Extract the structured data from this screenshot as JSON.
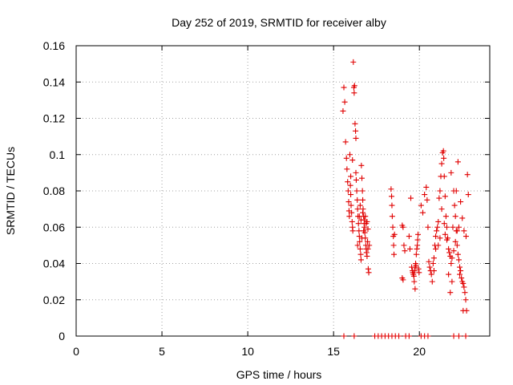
{
  "chart_data": {
    "type": "scatter",
    "title": "Day 252 of 2019, SRMTID for receiver alby",
    "xlabel": "GPS time / hours",
    "ylabel": "SRMTID / TECUs",
    "xlim": [
      0,
      24.1
    ],
    "ylim": [
      0,
      0.16
    ],
    "x_ticks": [
      0,
      5,
      10,
      15,
      20
    ],
    "x_tick_labels": [
      "0",
      "5",
      "10",
      "15",
      "20"
    ],
    "y_ticks": [
      0,
      0.02,
      0.04,
      0.06,
      0.08,
      0.1,
      0.12,
      0.14,
      0.16
    ],
    "y_tick_labels": [
      "0",
      "0.02",
      "0.04",
      "0.06",
      "0.08",
      "0.1",
      "0.12",
      "0.14",
      "0.16"
    ],
    "grid": true,
    "marker": "plus",
    "color": "#e00000",
    "series": [
      {
        "points": [
          [
            15.55,
            0.124
          ],
          [
            15.6,
            0.137
          ],
          [
            15.65,
            0.129
          ],
          [
            15.7,
            0.107
          ],
          [
            15.75,
            0.098
          ],
          [
            15.78,
            0.092
          ],
          [
            15.82,
            0.085
          ],
          [
            15.85,
            0.08
          ],
          [
            15.88,
            0.074
          ],
          [
            15.9,
            0.069
          ],
          [
            15.92,
            0.066
          ],
          [
            15.95,
            0.1
          ],
          [
            15.98,
            0.083
          ],
          [
            16.0,
            0.078
          ],
          [
            16.02,
            0.072
          ],
          [
            16.05,
            0.068
          ],
          [
            16.08,
            0.063
          ],
          [
            16.1,
            0.06
          ],
          [
            16.12,
            0.058
          ],
          [
            16.15,
            0.151
          ],
          [
            16.18,
            0.137
          ],
          [
            16.2,
            0.134
          ],
          [
            16.22,
            0.138
          ],
          [
            16.25,
            0.117
          ],
          [
            16.28,
            0.113
          ],
          [
            16.3,
            0.09
          ],
          [
            16.32,
            0.086
          ],
          [
            16.35,
            0.08
          ],
          [
            16.38,
            0.075
          ],
          [
            16.4,
            0.07
          ],
          [
            16.42,
            0.066
          ],
          [
            16.45,
            0.062
          ],
          [
            16.48,
            0.058
          ],
          [
            16.5,
            0.055
          ],
          [
            16.52,
            0.052
          ],
          [
            16.55,
            0.048
          ],
          [
            16.58,
            0.045
          ],
          [
            16.6,
            0.042
          ],
          [
            16.62,
            0.094
          ],
          [
            16.65,
            0.087
          ],
          [
            16.68,
            0.08
          ],
          [
            16.7,
            0.075
          ],
          [
            16.72,
            0.07
          ],
          [
            16.75,
            0.066
          ],
          [
            16.78,
            0.062
          ],
          [
            16.8,
            0.06
          ],
          [
            16.82,
            0.057
          ],
          [
            16.85,
            0.054
          ],
          [
            16.88,
            0.05
          ],
          [
            16.9,
            0.048
          ],
          [
            16.92,
            0.046
          ],
          [
            16.95,
            0.044
          ],
          [
            16.98,
            0.052
          ],
          [
            17.0,
            0.048
          ],
          [
            17.02,
            0.037
          ],
          [
            17.05,
            0.035
          ],
          [
            17.08,
            0.05
          ],
          [
            16.3,
            0.109
          ],
          [
            16.1,
            0.097
          ],
          [
            16.0,
            0.088
          ],
          [
            16.5,
            0.066
          ],
          [
            16.6,
            0.064
          ],
          [
            16.7,
            0.068
          ],
          [
            16.8,
            0.064
          ],
          [
            16.9,
            0.062
          ],
          [
            17.0,
            0.059
          ],
          [
            16.4,
            0.05
          ],
          [
            16.55,
            0.072
          ],
          [
            16.65,
            0.054
          ],
          [
            16.75,
            0.058
          ],
          [
            16.85,
            0.066
          ],
          [
            16.95,
            0.063
          ],
          [
            18.35,
            0.081
          ],
          [
            18.38,
            0.077
          ],
          [
            18.4,
            0.072
          ],
          [
            18.42,
            0.066
          ],
          [
            18.45,
            0.06
          ],
          [
            18.48,
            0.055
          ],
          [
            18.5,
            0.05
          ],
          [
            18.52,
            0.045
          ],
          [
            18.55,
            0.056
          ],
          [
            19.0,
            0.061
          ],
          [
            19.05,
            0.06
          ],
          [
            19.1,
            0.05
          ],
          [
            19.15,
            0.047
          ],
          [
            19.0,
            0.032
          ],
          [
            19.05,
            0.031
          ],
          [
            19.4,
            0.055
          ],
          [
            19.45,
            0.048
          ],
          [
            19.5,
            0.076
          ],
          [
            19.55,
            0.038
          ],
          [
            19.6,
            0.036
          ],
          [
            19.62,
            0.035
          ],
          [
            19.65,
            0.034
          ],
          [
            19.68,
            0.033
          ],
          [
            19.7,
            0.03
          ],
          [
            19.72,
            0.036
          ],
          [
            19.75,
            0.038
          ],
          [
            19.78,
            0.04
          ],
          [
            19.8,
            0.039
          ],
          [
            19.82,
            0.045
          ],
          [
            19.85,
            0.048
          ],
          [
            19.88,
            0.05
          ],
          [
            19.9,
            0.053
          ],
          [
            19.92,
            0.056
          ],
          [
            19.95,
            0.037
          ],
          [
            19.98,
            0.035
          ],
          [
            19.75,
            0.026
          ],
          [
            20.1,
            0.072
          ],
          [
            20.2,
            0.068
          ],
          [
            20.3,
            0.078
          ],
          [
            20.4,
            0.082
          ],
          [
            20.45,
            0.075
          ],
          [
            20.5,
            0.06
          ],
          [
            20.55,
            0.041
          ],
          [
            20.6,
            0.038
          ],
          [
            20.65,
            0.036
          ],
          [
            20.7,
            0.034
          ],
          [
            20.75,
            0.03
          ],
          [
            20.8,
            0.04
          ],
          [
            20.85,
            0.043
          ],
          [
            20.9,
            0.05
          ],
          [
            20.95,
            0.055
          ],
          [
            21.0,
            0.058
          ],
          [
            21.05,
            0.06
          ],
          [
            21.1,
            0.063
          ],
          [
            21.15,
            0.076
          ],
          [
            21.2,
            0.08
          ],
          [
            21.25,
            0.088
          ],
          [
            21.3,
            0.095
          ],
          [
            21.35,
            0.101
          ],
          [
            21.4,
            0.102
          ],
          [
            21.42,
            0.098
          ],
          [
            21.45,
            0.088
          ],
          [
            21.5,
            0.077
          ],
          [
            21.55,
            0.066
          ],
          [
            21.6,
            0.06
          ],
          [
            21.65,
            0.054
          ],
          [
            21.7,
            0.048
          ],
          [
            21.75,
            0.046
          ],
          [
            21.8,
            0.044
          ],
          [
            21.85,
            0.04
          ],
          [
            21.9,
            0.043
          ],
          [
            21.95,
            0.06
          ],
          [
            22.0,
            0.08
          ],
          [
            22.05,
            0.072
          ],
          [
            22.1,
            0.066
          ],
          [
            22.15,
            0.058
          ],
          [
            22.2,
            0.05
          ],
          [
            22.25,
            0.045
          ],
          [
            22.3,
            0.042
          ],
          [
            22.35,
            0.038
          ],
          [
            22.4,
            0.036
          ],
          [
            22.45,
            0.032
          ],
          [
            22.5,
            0.03
          ],
          [
            22.55,
            0.029
          ],
          [
            22.6,
            0.027
          ],
          [
            22.65,
            0.024
          ],
          [
            22.7,
            0.02
          ],
          [
            22.75,
            0.014
          ],
          [
            22.8,
            0.089
          ],
          [
            22.85,
            0.078
          ],
          [
            22.72,
            0.055
          ],
          [
            22.6,
            0.058
          ],
          [
            22.5,
            0.065
          ],
          [
            22.4,
            0.074
          ],
          [
            22.3,
            0.06
          ],
          [
            22.2,
            0.058
          ],
          [
            22.1,
            0.052
          ],
          [
            22.0,
            0.047
          ],
          [
            21.9,
            0.03
          ],
          [
            21.8,
            0.024
          ],
          [
            21.7,
            0.034
          ],
          [
            21.6,
            0.053
          ],
          [
            21.5,
            0.056
          ],
          [
            21.45,
            0.062
          ],
          [
            21.3,
            0.07
          ],
          [
            21.2,
            0.054
          ],
          [
            21.1,
            0.05
          ],
          [
            20.95,
            0.048
          ],
          [
            20.85,
            0.036
          ],
          [
            22.55,
            0.014
          ],
          [
            22.25,
            0.096
          ],
          [
            21.85,
            0.09
          ],
          [
            22.15,
            0.08
          ],
          [
            22.35,
            0.034
          ],
          [
            15.6,
            0.0
          ],
          [
            16.2,
            0.0
          ],
          [
            17.4,
            0.0
          ],
          [
            17.6,
            0.0
          ],
          [
            17.8,
            0.0
          ],
          [
            18.0,
            0.0
          ],
          [
            18.2,
            0.0
          ],
          [
            18.4,
            0.0
          ],
          [
            18.6,
            0.0
          ],
          [
            18.8,
            0.0
          ],
          [
            19.2,
            0.0
          ],
          [
            19.4,
            0.0
          ],
          [
            20.1,
            0.0
          ],
          [
            20.3,
            0.0
          ],
          [
            20.5,
            0.0
          ],
          [
            22.0,
            0.0
          ],
          [
            22.3,
            0.0
          ],
          [
            22.7,
            0.0
          ]
        ]
      }
    ]
  }
}
